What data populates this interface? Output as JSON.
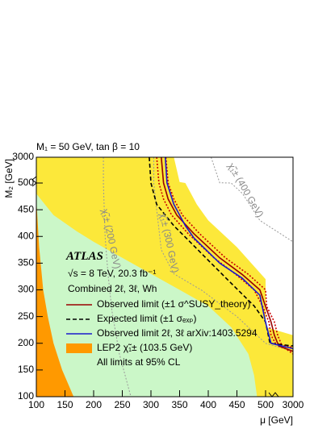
{
  "chart_data": {
    "type": "contour",
    "title": "M₁ = 50 GeV, tan β = 10",
    "x_label": "μ [GeV]",
    "y_label": "M₂ [GeV]",
    "xlim": [
      100,
      3000
    ],
    "ylim": [
      100,
      3000
    ],
    "xticks": [
      100,
      150,
      200,
      250,
      300,
      350,
      400,
      450,
      500,
      3000
    ],
    "yticks": [
      100,
      150,
      200,
      250,
      300,
      350,
      400,
      450,
      500,
      3000
    ],
    "annotations": [
      "ATLAS",
      "√s = 8 TeV, 20.3 fb⁻¹",
      "Combined 2ℓ, 3ℓ, Wh",
      "All limits at 95% CL"
    ],
    "series": [
      {
        "style": "fill",
        "color": "#fce83a",
        "x": [
          100,
          340,
          350,
          360,
          380,
          400,
          450,
          500,
          520,
          540,
          3000,
          3000,
          100
        ],
        "y": [
          3000,
          3000,
          600,
          500,
          460,
          430,
          380,
          320,
          260,
          230,
          215,
          100,
          100
        ]
      },
      {
        "style": "fill",
        "color": "#cbf7c8",
        "x": [
          100,
          100,
          130,
          170,
          200,
          250,
          300,
          350,
          400,
          440,
          470,
          480,
          485,
          100
        ],
        "y": [
          100,
          480,
          440,
          410,
          390,
          360,
          330,
          300,
          270,
          230,
          180,
          140,
          100,
          100
        ]
      },
      {
        "style": "dotted",
        "color": "#999999",
        "label": "χ̃₁± (200 GeV)",
        "x": [
          217,
          217,
          220,
          225,
          232,
          245,
          265
        ],
        "y": [
          3000,
          500,
          400,
          330,
          260,
          180,
          100
        ]
      },
      {
        "style": "dotted",
        "color": "#999999",
        "label": "χ̃₁± (300 GeV)",
        "x": [
          305,
          305,
          310,
          318,
          340,
          389,
          450,
          501,
          3000
        ],
        "y": [
          3000,
          500,
          450,
          375,
          330,
          299,
          250,
          200,
          185
        ]
      },
      {
        "style": "dotted",
        "color": "#999999",
        "label": "χ̃₁± (400 GeV)",
        "x": [
          405,
          420,
          440,
          460,
          490,
          3000
        ],
        "y": [
          3000,
          520,
          500,
          480,
          430,
          390
        ]
      },
      {
        "style": "dotted",
        "color": "#cc0000",
        "x": [
          326,
          330,
          340,
          355,
          385,
          430,
          470,
          500,
          600,
          1300,
          1600,
          2000,
          3000
        ],
        "y": [
          3000,
          500,
          470,
          440,
          405,
          360,
          329,
          300,
          269,
          240,
          215,
          195,
          180
        ]
      },
      {
        "style": "dotted",
        "color": "#cc0000",
        "x": [
          310,
          314,
          322,
          336,
          365,
          410,
          448,
          480,
          495,
          800,
          1000,
          1400,
          3000
        ],
        "y": [
          3000,
          500,
          470,
          440,
          405,
          360,
          329,
          300,
          269,
          240,
          215,
          200,
          192
        ]
      },
      {
        "style": "solid",
        "color": "#990000",
        "name": "Observed limit (±1 σ^SUSY_theory)",
        "x": [
          318,
          322,
          330,
          345,
          375,
          420,
          459,
          490,
          501,
          1000,
          1300,
          1700,
          3000
        ],
        "y": [
          3000,
          500,
          470,
          440,
          405,
          360,
          329,
          300,
          269,
          240,
          215,
          195,
          185
        ]
      },
      {
        "style": "dashed",
        "color": "#000000",
        "name": "Expected limit (±1 σₑₓₚ)",
        "x": [
          297,
          300,
          310,
          340,
          368,
          405,
          445,
          480,
          500,
          900,
          3000
        ],
        "y": [
          3000,
          500,
          460,
          420,
          390,
          350,
          307,
          270,
          240,
          200,
          195
        ]
      },
      {
        "style": "solid",
        "color": "#1a1acc",
        "name": "Observed limit 2ℓ, 3ℓ arXiv:1403.5294",
        "x": [
          325,
          328,
          340,
          360,
          375,
          420,
          459,
          490,
          501,
          1000,
          3000
        ],
        "y": [
          3000,
          500,
          460,
          420,
          397,
          350,
          322,
          290,
          239,
          200,
          190
        ]
      },
      {
        "style": "fill",
        "color": "#ff9900",
        "name": "LEP2 χ̃₁± (103.5 GeV)",
        "x": [
          100,
          100,
          105,
          112,
          120,
          130,
          145,
          165,
          100
        ],
        "y": [
          100,
          470,
          380,
          300,
          250,
          200,
          150,
          100,
          100
        ]
      }
    ]
  }
}
